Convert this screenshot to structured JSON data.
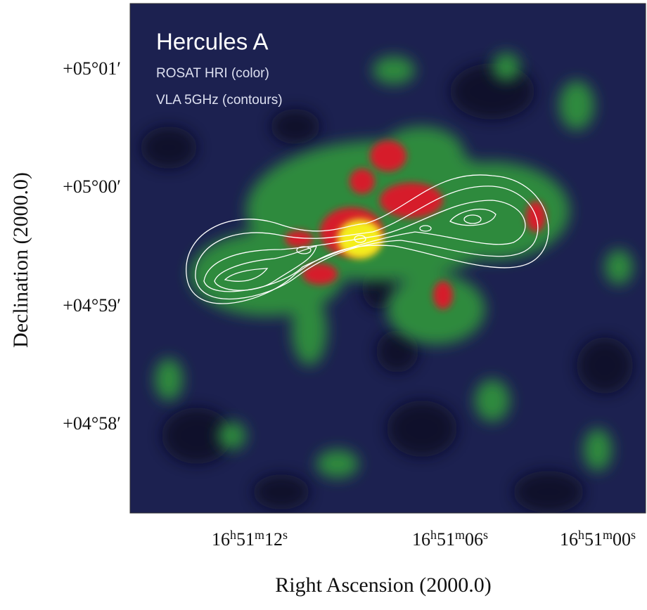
{
  "figure": {
    "title": "Hercules A",
    "legend": [
      "ROSAT HRI (color)",
      "VLA 5GHz (contours)"
    ],
    "y_axis": {
      "label": "Declination (2000.0)",
      "ticks": [
        "+05°01′",
        "+05°00′",
        "+04°59′",
        "+04°58′"
      ]
    },
    "x_axis": {
      "label": "Right Ascension (2000.0)",
      "ticks": [
        "16h51m12s",
        "16h51m06s",
        "16h51m00s"
      ]
    }
  }
}
